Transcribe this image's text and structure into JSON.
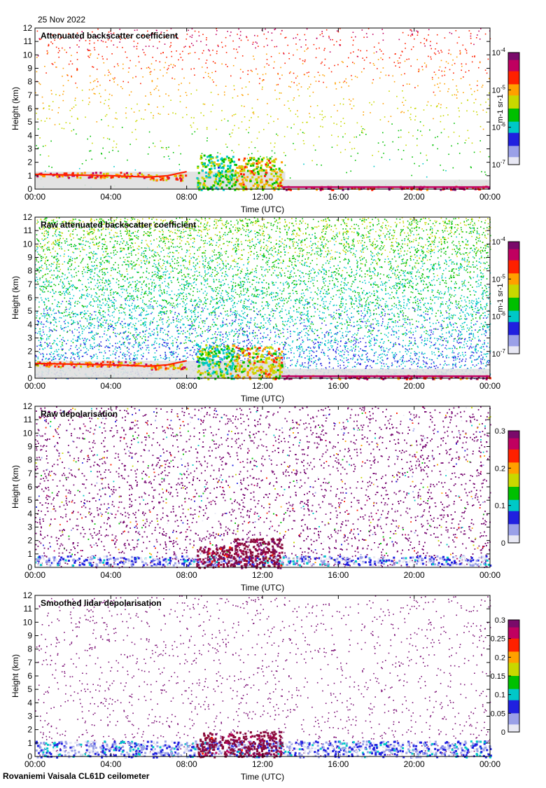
{
  "header": {
    "date": "25 Nov 2022"
  },
  "footer": {
    "site": "Rovaniemi Vaisala CL61D ceilometer"
  },
  "chart_data": [
    {
      "type": "heatmap",
      "title": "Attenuated backscatter coefficient",
      "xlabel": "Time (UTC)",
      "ylabel": "Height (km)",
      "x_ticks": [
        "00:00",
        "04:00",
        "08:00",
        "12:00",
        "16:00",
        "20:00",
        "00:00"
      ],
      "y_ticks": [
        0,
        1,
        2,
        3,
        4,
        5,
        6,
        7,
        8,
        9,
        10,
        11,
        12
      ],
      "xlim_hours": [
        0,
        24
      ],
      "ylim_km": [
        0,
        12
      ],
      "colorbar": {
        "scale": "log",
        "labels": [
          "10-7",
          "10-6",
          "10-5",
          "10-4"
        ],
        "units": "m-1 sr-1"
      },
      "features": [
        {
          "t0": 0,
          "t1": 6,
          "h0": 0.9,
          "h1": 1.3,
          "level": 0.75
        },
        {
          "t0": 6,
          "t1": 8,
          "h0": 0.7,
          "h1": 1.1,
          "level": 0.7
        },
        {
          "t0": 8.5,
          "t1": 10.5,
          "h0": 0.0,
          "h1": 2.6,
          "level": 0.45
        },
        {
          "t0": 10.5,
          "t1": 13.0,
          "h0": 0.0,
          "h1": 2.4,
          "level": 0.6
        },
        {
          "t0": 13,
          "t1": 24,
          "h0": 0.0,
          "h1": 0.25,
          "level": 0.85
        }
      ]
    },
    {
      "type": "heatmap",
      "title": "Raw attenuated backscatter coefficient",
      "xlabel": "Time (UTC)",
      "ylabel": "Height (km)",
      "x_ticks": [
        "00:00",
        "04:00",
        "08:00",
        "12:00",
        "16:00",
        "20:00",
        "00:00"
      ],
      "y_ticks": [
        0,
        1,
        2,
        3,
        4,
        5,
        6,
        7,
        8,
        9,
        10,
        11,
        12
      ],
      "xlim_hours": [
        0,
        24
      ],
      "ylim_km": [
        0,
        12
      ],
      "colorbar": {
        "scale": "log",
        "labels": [
          "10-7",
          "10-6",
          "10-5",
          "10-4"
        ],
        "units": "m-1 sr-1"
      },
      "features": [
        {
          "t0": 0,
          "t1": 6,
          "h0": 0.9,
          "h1": 1.3,
          "level": 0.75
        },
        {
          "t0": 6,
          "t1": 8,
          "h0": 0.7,
          "h1": 1.1,
          "level": 0.7
        },
        {
          "t0": 8.5,
          "t1": 10.5,
          "h0": 0.0,
          "h1": 2.6,
          "level": 0.45
        },
        {
          "t0": 10.5,
          "t1": 13.0,
          "h0": 0.0,
          "h1": 2.4,
          "level": 0.6
        },
        {
          "t0": 13,
          "t1": 24,
          "h0": 0.0,
          "h1": 0.25,
          "level": 0.85
        }
      ]
    },
    {
      "type": "heatmap",
      "title": "Raw depolarisation",
      "xlabel": "Time (UTC)",
      "ylabel": "Height (km)",
      "x_ticks": [
        "00:00",
        "04:00",
        "08:00",
        "12:00",
        "16:00",
        "20:00",
        "00:00"
      ],
      "y_ticks": [
        0,
        1,
        2,
        3,
        4,
        5,
        6,
        7,
        8,
        9,
        10,
        11,
        12
      ],
      "xlim_hours": [
        0,
        24
      ],
      "ylim_km": [
        0,
        12
      ],
      "colorbar": {
        "scale": "linear",
        "labels": [
          "0",
          "0.1",
          "0.2",
          "0.3"
        ]
      },
      "features": [
        {
          "t0": 0,
          "t1": 24,
          "h0": 0.2,
          "h1": 0.9,
          "level": 0.15
        },
        {
          "t0": 8.5,
          "t1": 10.5,
          "h0": 0.0,
          "h1": 1.6,
          "level": 0.95
        },
        {
          "t0": 10.5,
          "t1": 13.0,
          "h0": 0.0,
          "h1": 2.2,
          "level": 1.0
        }
      ]
    },
    {
      "type": "heatmap",
      "title": "Smoothed lidar depolarisation",
      "xlabel": "Time (UTC)",
      "ylabel": "Height (km)",
      "x_ticks": [
        "00:00",
        "04:00",
        "08:00",
        "12:00",
        "16:00",
        "20:00",
        "00:00"
      ],
      "y_ticks": [
        0,
        1,
        2,
        3,
        4,
        5,
        6,
        7,
        8,
        9,
        10,
        11,
        12
      ],
      "xlim_hours": [
        0,
        24
      ],
      "ylim_km": [
        0,
        12
      ],
      "colorbar": {
        "scale": "linear",
        "labels": [
          "0",
          "0.05",
          "0.1",
          "0.15",
          "0.2",
          "0.25",
          "0.3"
        ]
      },
      "features": [
        {
          "t0": 0,
          "t1": 24,
          "h0": 0.0,
          "h1": 1.2,
          "level": 0.15
        },
        {
          "t0": 8.5,
          "t1": 10.5,
          "h0": 0.0,
          "h1": 1.8,
          "level": 0.95
        },
        {
          "t0": 10.5,
          "t1": 13.0,
          "h0": 0.0,
          "h1": 1.9,
          "level": 1.0
        }
      ]
    }
  ],
  "colors": {
    "palette": [
      "#e8e8f4",
      "#9aa0e8",
      "#2020e0",
      "#00c8c8",
      "#00c000",
      "#c8d800",
      "#ffa000",
      "#ff2000",
      "#c00060",
      "#7a0a6a"
    ],
    "background_fill": "#e0e0e0",
    "noise_depol": "#7b0d74"
  }
}
